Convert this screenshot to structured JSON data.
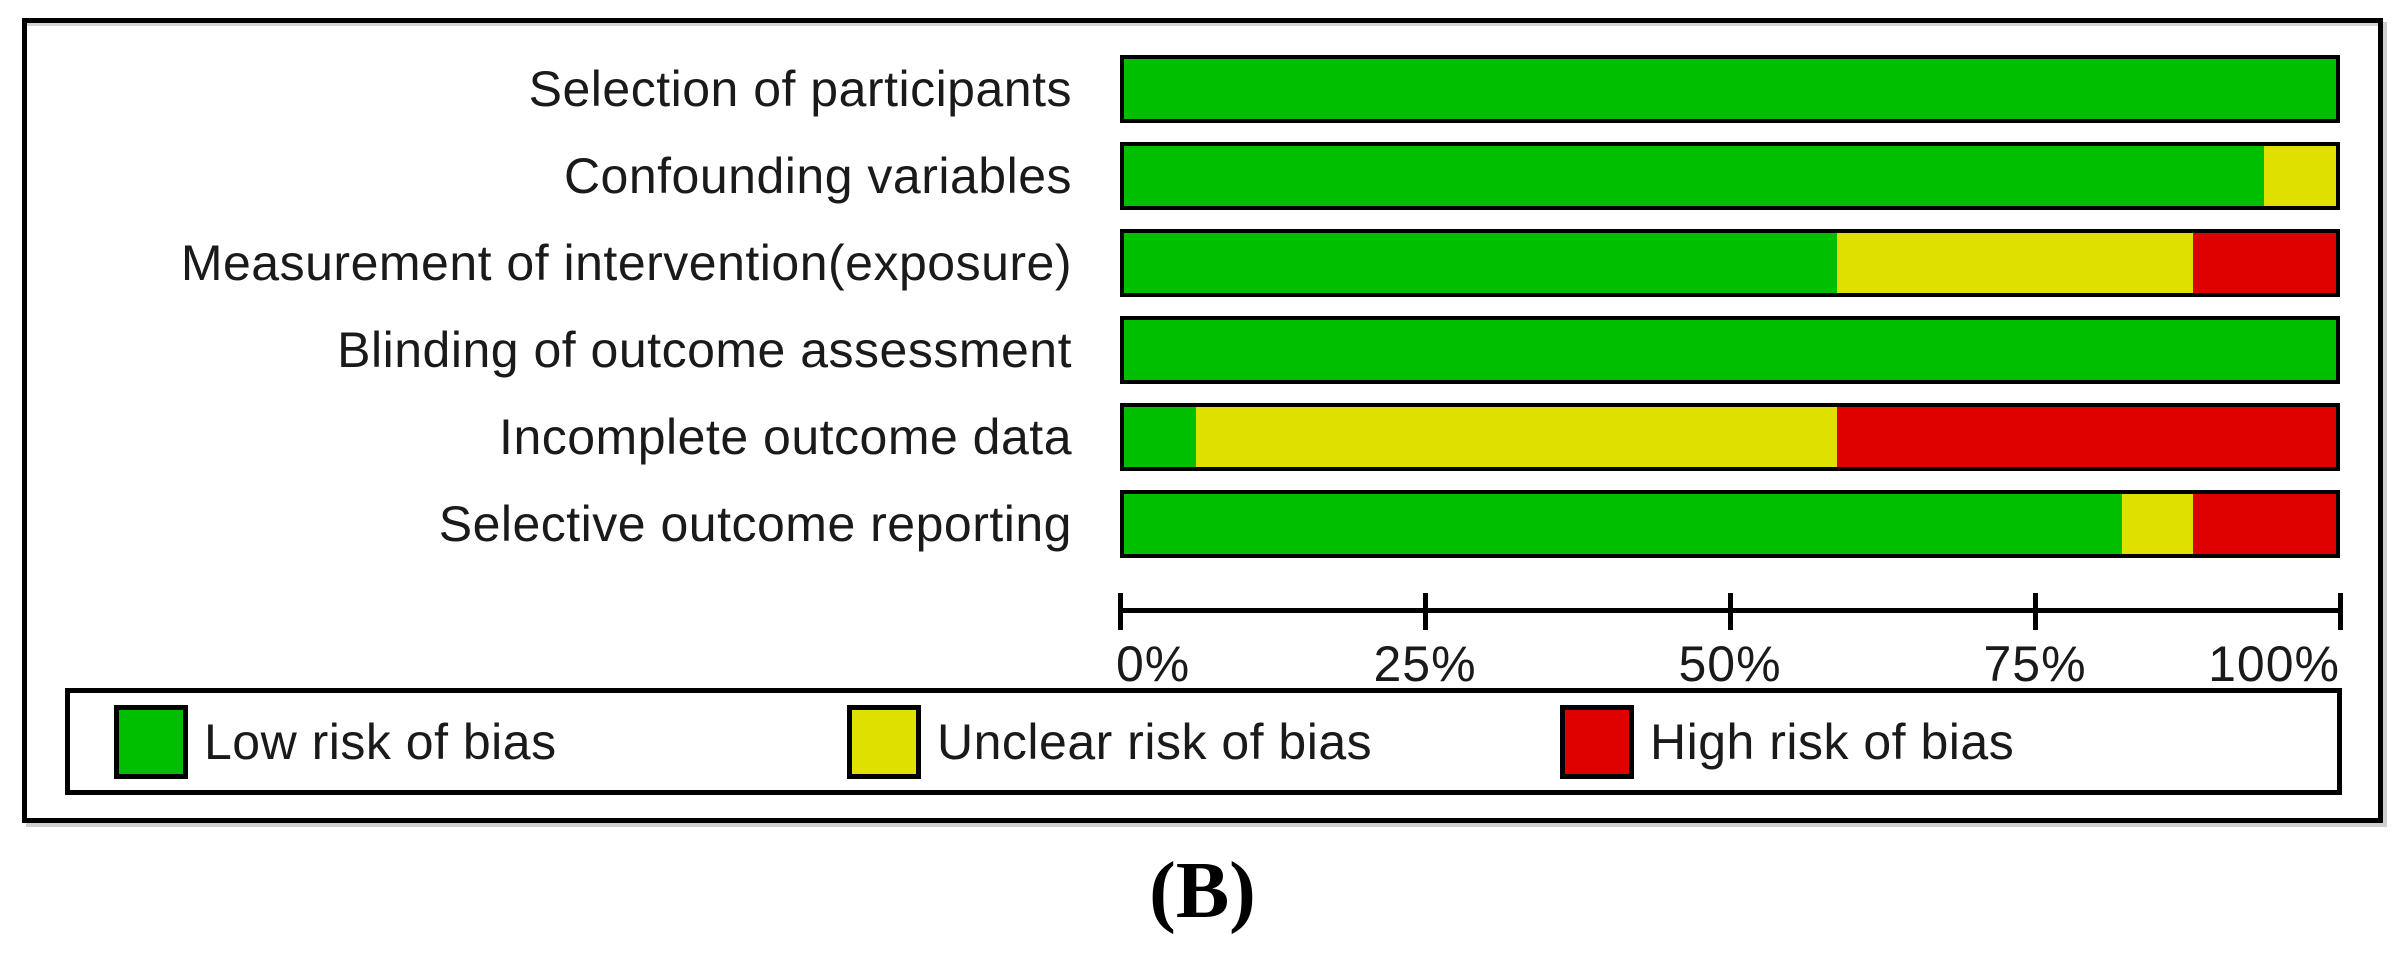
{
  "figure": {
    "caption": "(B)"
  },
  "chart_data": {
    "type": "bar",
    "variant": "horizontal-stacked-100-percent",
    "title": "",
    "categories": [
      "Selection of participants",
      "Confounding variables",
      "Measurement of intervention(exposure)",
      "Blinding of outcome assessment",
      "Incomplete outcome data",
      "Selective outcome reporting"
    ],
    "series": [
      {
        "key": "low-risk",
        "name": "Low risk of bias",
        "color": "#00be00",
        "values_pct": [
          100,
          94.1,
          58.8,
          100,
          5.9,
          82.4
        ]
      },
      {
        "key": "unclear-risk",
        "name": "Unclear risk of bias",
        "color": "#dfdf00",
        "values_pct": [
          0,
          5.9,
          29.4,
          0,
          52.9,
          5.9
        ]
      },
      {
        "key": "high-risk",
        "name": "High risk of bias",
        "color": "#df0000",
        "values_pct": [
          0,
          0,
          11.8,
          0,
          41.2,
          11.8
        ]
      }
    ],
    "x_axis": {
      "range_pct": [
        0,
        100
      ],
      "tick_labels": [
        "0%",
        "25%",
        "50%",
        "75%",
        "100%"
      ],
      "grid": false
    },
    "legend": {
      "position": "bottom",
      "items": [
        "Low risk of bias",
        "Unclear risk of bias",
        "High risk of bias"
      ]
    },
    "colors": {
      "frame_border": "#000000",
      "background": "#ffffff",
      "text": "#1a1a1a"
    }
  }
}
